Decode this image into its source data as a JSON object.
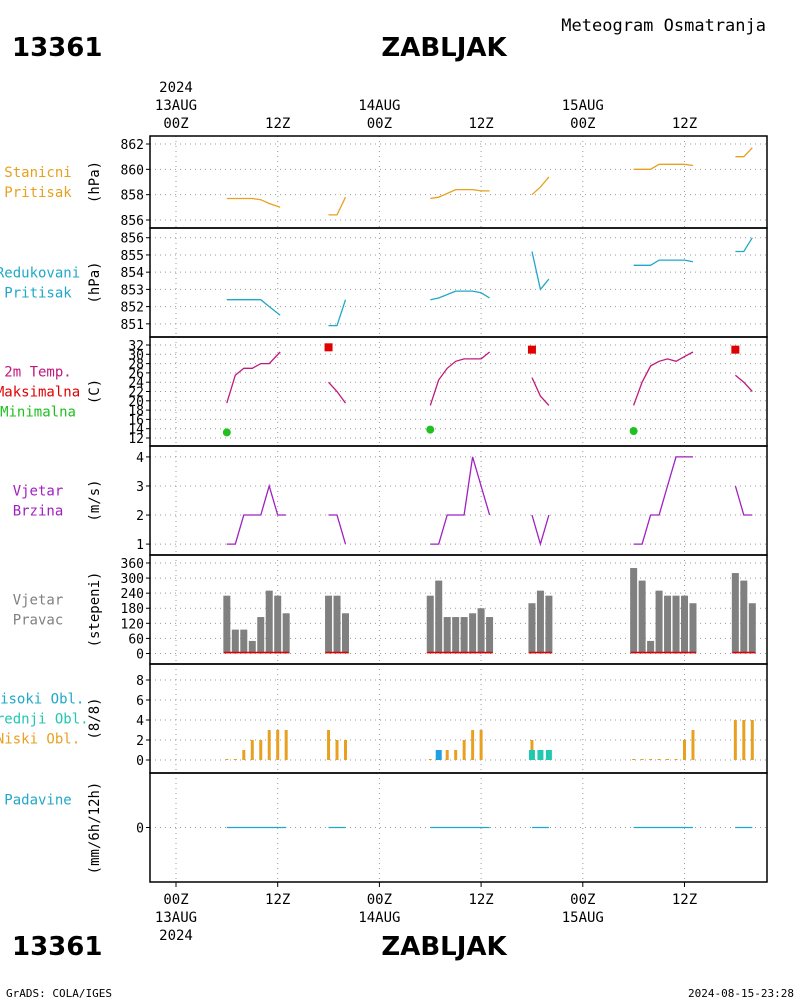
{
  "header": {
    "station_id": "13361",
    "station_name": "ZABLJAK",
    "product_title": "Meteogram Osmatranja",
    "footer_left": "GrADS: COLA/IGES",
    "footer_right": "2024-08-15-23:28"
  },
  "colors": {
    "orange": "#e8a020",
    "cyan": "#20a8c8",
    "magenta": "#c0187c",
    "red": "#e00000",
    "green": "#20c020",
    "purple": "#a020c0",
    "gray": "#808080",
    "teal": "#20c8b0",
    "blue": "#20a0e0"
  },
  "time_axis": {
    "top_year": "2024",
    "dates": [
      "13AUG",
      "14AUG",
      "15AUG"
    ],
    "ticks": [
      {
        "t": 0,
        "label": "00Z"
      },
      {
        "t": 12,
        "label": "12Z"
      },
      {
        "t": 24,
        "label": "00Z"
      },
      {
        "t": 36,
        "label": "12Z"
      },
      {
        "t": 48,
        "label": "00Z"
      },
      {
        "t": 60,
        "label": "12Z"
      }
    ],
    "bottom_year": "2024"
  },
  "chart_data": [
    {
      "type": "line",
      "label_lines": [
        "Stanicni",
        "Pritisak"
      ],
      "unit": "(hPa)",
      "color": "orange",
      "ylim": [
        856,
        862
      ],
      "yticks": [
        856,
        858,
        860,
        862
      ],
      "series": [
        {
          "segments": [
            [
              [
                6,
                857.7
              ],
              [
                9,
                857.7
              ],
              [
                10,
                857.6
              ],
              [
                11,
                857.3
              ],
              [
                12.3,
                857.0
              ]
            ],
            [
              [
                18,
                856.4
              ],
              [
                19,
                856.4
              ],
              [
                20,
                857.8
              ]
            ],
            [
              [
                30,
                857.7
              ],
              [
                31,
                857.8
              ],
              [
                33,
                858.4
              ],
              [
                35,
                858.4
              ],
              [
                36,
                858.3
              ],
              [
                37,
                858.3
              ]
            ],
            [
              [
                42,
                858.0
              ],
              [
                43,
                858.6
              ],
              [
                44,
                859.4
              ]
            ],
            [
              [
                54,
                860.0
              ],
              [
                56,
                860.0
              ],
              [
                57,
                860.4
              ],
              [
                60,
                860.4
              ],
              [
                61,
                860.3
              ]
            ],
            [
              [
                66,
                861.0
              ],
              [
                67,
                861.0
              ],
              [
                68,
                861.7
              ]
            ]
          ]
        }
      ]
    },
    {
      "type": "line",
      "label_lines": [
        "Redukovani",
        "Pritisak"
      ],
      "unit": "(hPa)",
      "color": "cyan",
      "ylim": [
        850.7,
        856.1
      ],
      "yticks": [
        851,
        852,
        853,
        854,
        855,
        856
      ],
      "series": [
        {
          "segments": [
            [
              [
                6,
                852.4
              ],
              [
                10,
                852.4
              ],
              [
                11,
                852.0
              ],
              [
                12.3,
                851.5
              ]
            ],
            [
              [
                18,
                850.9
              ],
              [
                19,
                850.9
              ],
              [
                20,
                852.4
              ]
            ],
            [
              [
                30,
                852.4
              ],
              [
                31,
                852.5
              ],
              [
                33,
                852.9
              ],
              [
                35,
                852.9
              ],
              [
                36,
                852.8
              ],
              [
                37,
                852.5
              ]
            ],
            [
              [
                42,
                855.2
              ],
              [
                43,
                853.0
              ],
              [
                44,
                853.6
              ]
            ],
            [
              [
                54,
                854.4
              ],
              [
                56,
                854.4
              ],
              [
                57,
                854.7
              ],
              [
                60,
                854.7
              ],
              [
                61,
                854.6
              ]
            ],
            [
              [
                66,
                855.2
              ],
              [
                67,
                855.2
              ],
              [
                68,
                856.0
              ]
            ]
          ]
        }
      ]
    },
    {
      "type": "line",
      "label_lines": [
        "2m Temp.",
        "Maksimalna",
        "Minimalna"
      ],
      "label_colors": [
        "magenta",
        "red",
        "green"
      ],
      "unit": "(C)",
      "color": "magenta",
      "ylim": [
        12,
        32
      ],
      "yticks": [
        12,
        14,
        16,
        18,
        20,
        22,
        24,
        26,
        28,
        30,
        32
      ],
      "series": [
        {
          "segments": [
            [
              [
                6,
                19.5
              ],
              [
                7,
                25.5
              ],
              [
                8,
                27
              ],
              [
                9,
                27
              ],
              [
                10,
                28
              ],
              [
                11,
                28
              ],
              [
                12.3,
                30.5
              ]
            ],
            [
              [
                18,
                24
              ],
              [
                19,
                22
              ],
              [
                20,
                19.5
              ]
            ],
            [
              [
                30,
                19
              ],
              [
                31,
                24.5
              ],
              [
                32,
                27
              ],
              [
                33,
                28.5
              ],
              [
                34,
                29
              ],
              [
                35,
                29
              ],
              [
                36,
                29
              ],
              [
                37,
                30.5
              ]
            ],
            [
              [
                42,
                25
              ],
              [
                43,
                21
              ],
              [
                44,
                19
              ]
            ],
            [
              [
                54,
                19
              ],
              [
                55,
                24
              ],
              [
                56,
                27.5
              ],
              [
                57,
                28.5
              ],
              [
                58,
                29
              ],
              [
                59,
                28.5
              ],
              [
                60,
                29.5
              ],
              [
                61,
                30.5
              ]
            ],
            [
              [
                66,
                25.5
              ],
              [
                67,
                24
              ],
              [
                68,
                22
              ]
            ]
          ]
        }
      ],
      "max_points": [
        [
          18,
          31.5
        ],
        [
          42,
          31
        ],
        [
          66,
          31
        ]
      ],
      "min_points": [
        [
          6,
          13.2
        ],
        [
          30,
          13.8
        ],
        [
          54,
          13.5
        ]
      ]
    },
    {
      "type": "line",
      "label_lines": [
        "Vjetar",
        "Brzina"
      ],
      "unit": "(m/s)",
      "color": "purple",
      "ylim": [
        0.9,
        4.1
      ],
      "yticks": [
        1,
        2,
        3,
        4
      ],
      "series": [
        {
          "segments": [
            [
              [
                6,
                1
              ],
              [
                7,
                1
              ],
              [
                8,
                2
              ],
              [
                9,
                2
              ],
              [
                10,
                2
              ],
              [
                11,
                3
              ],
              [
                12,
                2
              ],
              [
                13,
                2
              ]
            ],
            [
              [
                18,
                2
              ],
              [
                19,
                2
              ],
              [
                20,
                1
              ]
            ],
            [
              [
                30,
                1
              ],
              [
                31,
                1
              ],
              [
                32,
                2
              ],
              [
                33,
                2
              ],
              [
                34,
                2
              ],
              [
                35,
                4
              ],
              [
                36,
                3
              ],
              [
                37,
                2
              ]
            ],
            [
              [
                42,
                2
              ],
              [
                43,
                1
              ],
              [
                44,
                2
              ]
            ],
            [
              [
                54,
                1
              ],
              [
                55,
                1
              ],
              [
                56,
                2
              ],
              [
                57,
                2
              ],
              [
                58,
                3
              ],
              [
                59,
                4
              ],
              [
                60,
                4
              ],
              [
                61,
                4
              ]
            ],
            [
              [
                66,
                3
              ],
              [
                67,
                2
              ],
              [
                68,
                2
              ]
            ]
          ]
        }
      ]
    },
    {
      "type": "bar",
      "label_lines": [
        "Vjetar",
        "Pravac"
      ],
      "unit": "(stepeni)",
      "color": "gray",
      "ylim": [
        -10,
        360
      ],
      "yticks": [
        0,
        60,
        120,
        180,
        240,
        300,
        360
      ],
      "bars": [
        [
          6,
          230
        ],
        [
          7,
          95
        ],
        [
          8,
          95
        ],
        [
          9,
          50
        ],
        [
          10,
          145
        ],
        [
          11,
          250
        ],
        [
          12,
          230
        ],
        [
          13,
          160
        ],
        [
          18,
          230
        ],
        [
          19,
          230
        ],
        [
          20,
          160
        ],
        [
          30,
          230
        ],
        [
          31,
          290
        ],
        [
          32,
          145
        ],
        [
          33,
          145
        ],
        [
          34,
          145
        ],
        [
          35,
          160
        ],
        [
          36,
          180
        ],
        [
          37,
          145
        ],
        [
          42,
          200
        ],
        [
          43,
          250
        ],
        [
          44,
          230
        ],
        [
          54,
          340
        ],
        [
          55,
          290
        ],
        [
          56,
          50
        ],
        [
          57,
          250
        ],
        [
          58,
          230
        ],
        [
          59,
          230
        ],
        [
          60,
          230
        ],
        [
          61,
          200
        ],
        [
          66,
          320
        ],
        [
          67,
          290
        ],
        [
          68,
          200
        ]
      ]
    },
    {
      "type": "bar",
      "label_lines": [
        "Visoki Obl.",
        "Srednji Obl.",
        "Niski Obl."
      ],
      "label_colors": [
        "cyan",
        "teal",
        "orange"
      ],
      "unit": "(8/8)",
      "ylim": [
        -0.5,
        8.8
      ],
      "yticks": [
        0,
        2,
        4,
        6,
        8
      ],
      "series": [
        {
          "color": "orange",
          "points": [
            [
              6,
              0
            ],
            [
              7,
              0
            ],
            [
              8,
              1
            ],
            [
              9,
              2
            ],
            [
              10,
              2
            ],
            [
              11,
              3
            ],
            [
              12,
              3
            ],
            [
              13,
              3
            ],
            [
              18,
              3
            ],
            [
              19,
              2
            ],
            [
              20,
              2
            ],
            [
              30,
              0
            ],
            [
              31,
              1
            ],
            [
              32,
              1
            ],
            [
              33,
              1
            ],
            [
              34,
              2
            ],
            [
              35,
              3
            ],
            [
              36,
              3
            ],
            [
              42,
              2
            ],
            [
              54,
              0
            ],
            [
              55,
              0
            ],
            [
              56,
              0
            ],
            [
              57,
              0
            ],
            [
              58,
              0
            ],
            [
              59,
              0
            ],
            [
              60,
              2
            ],
            [
              61,
              3
            ],
            [
              66,
              4
            ],
            [
              67,
              4
            ],
            [
              68,
              4
            ]
          ]
        },
        {
          "color": "teal",
          "points": [
            [
              42,
              1
            ],
            [
              43,
              1
            ],
            [
              44,
              1
            ]
          ]
        },
        {
          "color": "blue",
          "points": [
            [
              31,
              1
            ]
          ]
        }
      ]
    },
    {
      "type": "line",
      "label_lines": [
        "Padavine"
      ],
      "unit": "(mm/6h/12h)",
      "color": "cyan",
      "ylim": [
        -1,
        1
      ],
      "yticks": [
        0
      ],
      "series": [
        {
          "segments": [
            [
              [
                6,
                0
              ],
              [
                13,
                0
              ]
            ],
            [
              [
                18,
                0
              ],
              [
                20,
                0
              ]
            ],
            [
              [
                30,
                0
              ],
              [
                37,
                0
              ]
            ],
            [
              [
                42,
                0
              ],
              [
                44,
                0
              ]
            ],
            [
              [
                54,
                0
              ],
              [
                61,
                0
              ]
            ],
            [
              [
                66,
                0
              ],
              [
                68,
                0
              ]
            ]
          ]
        }
      ]
    }
  ]
}
